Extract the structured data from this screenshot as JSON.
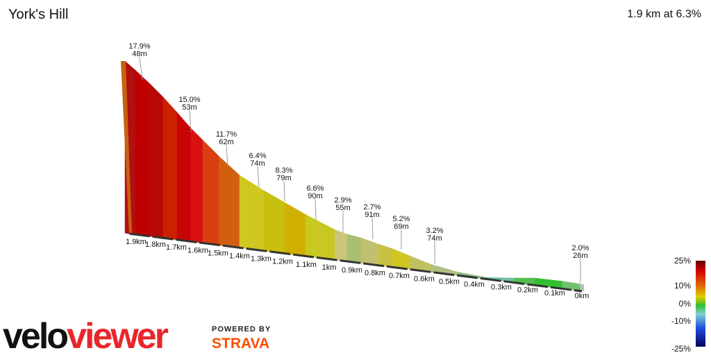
{
  "header": {
    "title": "York's Hill",
    "summary": "1.9 km at 6.3%"
  },
  "annotations": [
    {
      "grade": "17.9%",
      "length": "48m"
    },
    {
      "grade": "15.0%",
      "length": "53m"
    },
    {
      "grade": "11.7%",
      "length": "62m"
    },
    {
      "grade": "6.4%",
      "length": "74m"
    },
    {
      "grade": "8.3%",
      "length": "79m"
    },
    {
      "grade": "6.6%",
      "length": "90m"
    },
    {
      "grade": "2.9%",
      "length": "55m"
    },
    {
      "grade": "2.7%",
      "length": "91m"
    },
    {
      "grade": "5.2%",
      "length": "69m"
    },
    {
      "grade": "3.2%",
      "length": "74m"
    },
    {
      "grade": "2.0%",
      "length": "26m"
    }
  ],
  "distance_labels": [
    "1.9km",
    "1.8km",
    "1.7km",
    "1.6km",
    "1.5km",
    "1.4km",
    "1.3km",
    "1.2km",
    "1.1km",
    "1km",
    "0.9km",
    "0.8km",
    "0.7km",
    "0.6km",
    "0.5km",
    "0.4km",
    "0.3km",
    "0.2km",
    "0.1km",
    "0km"
  ],
  "legend": {
    "labels": [
      "25%",
      "10%",
      "0%",
      "-10%",
      "-25%"
    ]
  },
  "branding": {
    "logo_parts": [
      "velo",
      "viewer"
    ],
    "powered_by": "POWERED BY",
    "strava": "STRAVA"
  }
}
